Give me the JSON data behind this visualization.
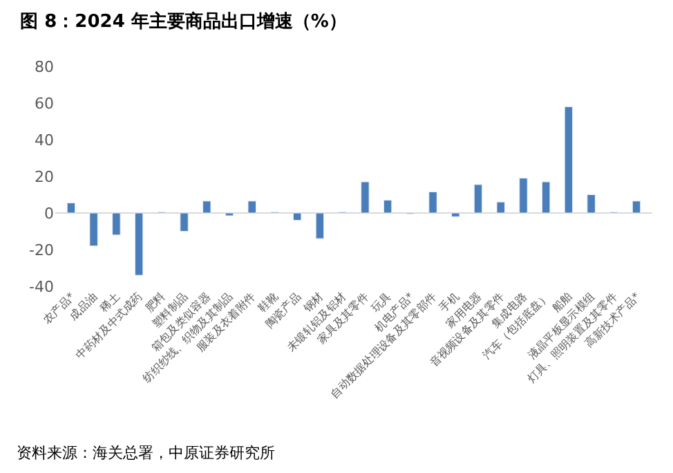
{
  "chart_data": {
    "type": "bar",
    "title": "图 8：2024 年主要商品出口增速（%）",
    "categories": [
      "农产品*",
      "成品油",
      "稀土",
      "中药材及中式成药",
      "肥料",
      "塑料制品",
      "箱包及类似容器",
      "纺织纱线、织物及其制品",
      "服装及衣着附件",
      "鞋靴",
      "陶瓷产品",
      "钢材",
      "未锻轧铝及铝材",
      "家具及其零件",
      "玩具",
      "机电产品*",
      "自动数据处理设备及其零部件",
      "手机",
      "家用电器",
      "音视频设备及其零件",
      "集成电路",
      "汽车（包括底盘）",
      "船舶",
      "液晶平板显示模组",
      "灯具、照明装置及其零件",
      "高新技术产品*"
    ],
    "values": [
      5.5,
      -18,
      -12,
      -34,
      0.5,
      -10,
      6.5,
      -1.5,
      6.5,
      0.5,
      -4,
      -14,
      0.5,
      17,
      7,
      -0.5,
      11.5,
      -2,
      15.5,
      6,
      19,
      17,
      58,
      10,
      0.5,
      6.5
    ],
    "color": "#4a7ebb",
    "ylim": [
      -40,
      80
    ],
    "yticks": [
      -40,
      -20,
      0,
      20,
      40,
      60,
      80
    ],
    "annotations": [
      "资料来源：海关总署，中原证券研究所"
    ]
  }
}
